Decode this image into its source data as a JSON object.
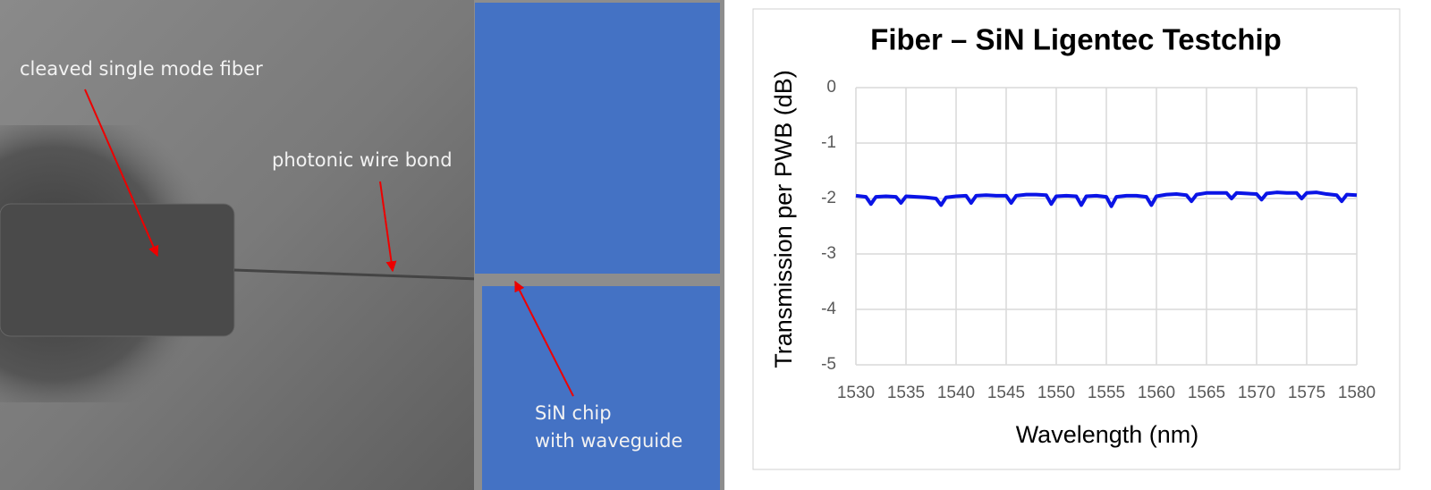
{
  "photo": {
    "annotations": [
      [
        "cleaved single mode fiber"
      ],
      [
        "photonic wire bond"
      ],
      [
        "SiN chip",
        "with waveguide"
      ]
    ]
  },
  "chart_data": {
    "type": "line",
    "title": "Fiber – SiN Ligentec Testchip",
    "x_label": "Wavelength (nm)",
    "y_label": "Transmission per PWB (dB)",
    "xlim": [
      1530,
      1580
    ],
    "xticks": [
      1530,
      1535,
      1540,
      1545,
      1550,
      1555,
      1560,
      1565,
      1570,
      1575,
      1580
    ],
    "ylim": [
      -5,
      0
    ],
    "yticks": [
      0,
      -1,
      -2,
      -3,
      -4,
      -5
    ],
    "grid": true,
    "x": [
      1530,
      1531,
      1531.5,
      1532,
      1533,
      1534,
      1534.5,
      1535,
      1536,
      1537,
      1538,
      1538.5,
      1539,
      1540,
      1541,
      1541.5,
      1542,
      1543,
      1544,
      1545,
      1545.5,
      1546,
      1547,
      1548,
      1549,
      1549.5,
      1550,
      1551,
      1552,
      1552.5,
      1553,
      1554,
      1555,
      1555.5,
      1556,
      1557,
      1558,
      1559,
      1559.5,
      1560,
      1561,
      1562,
      1563,
      1563.5,
      1564,
      1565,
      1566,
      1567,
      1567.5,
      1568,
      1569,
      1570,
      1570.5,
      1571,
      1572,
      1573,
      1574,
      1574.5,
      1575,
      1576,
      1577,
      1578,
      1578.5,
      1579,
      1580
    ],
    "series": [
      {
        "color": "#0a14e6",
        "values": [
          -1.95,
          -1.97,
          -2.1,
          -1.97,
          -1.96,
          -1.97,
          -2.08,
          -1.96,
          -1.97,
          -1.98,
          -2.0,
          -2.12,
          -1.98,
          -1.96,
          -1.95,
          -2.08,
          -1.95,
          -1.94,
          -1.95,
          -1.95,
          -2.08,
          -1.95,
          -1.93,
          -1.93,
          -1.94,
          -2.1,
          -1.96,
          -1.95,
          -1.96,
          -2.12,
          -1.96,
          -1.95,
          -1.97,
          -2.14,
          -1.97,
          -1.95,
          -1.95,
          -1.97,
          -2.12,
          -1.96,
          -1.93,
          -1.92,
          -1.94,
          -2.05,
          -1.93,
          -1.9,
          -1.9,
          -1.9,
          -2.0,
          -1.9,
          -1.91,
          -1.92,
          -2.02,
          -1.91,
          -1.89,
          -1.9,
          -1.9,
          -2.0,
          -1.9,
          -1.89,
          -1.92,
          -1.94,
          -2.05,
          -1.93,
          -1.94
        ]
      }
    ]
  }
}
